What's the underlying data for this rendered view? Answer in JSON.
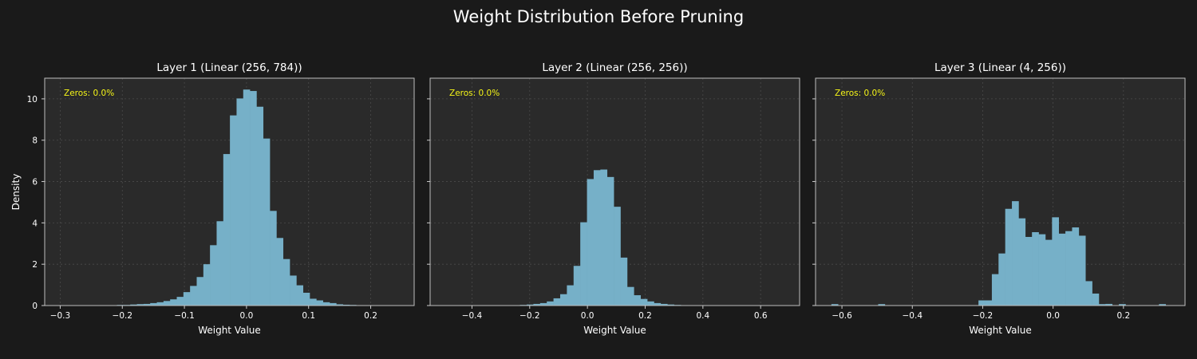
{
  "figure": {
    "suptitle": "Weight Distribution Before Pruning",
    "background": "#1a1a1a",
    "panel_background": "#2a2a2a",
    "bar_color": "#76b0c8",
    "annotation_color": "#f5f518",
    "text_color": "#ffffff"
  },
  "chart_data": [
    {
      "type": "bar",
      "title": "Layer 1 (Linear (256, 784))",
      "xlabel": "Weight Value",
      "ylabel": "Density",
      "annotation": "Zeros: 0.0%",
      "xlim": [
        -0.325,
        0.27
      ],
      "ylim": [
        0,
        11
      ],
      "grid": true,
      "xticks": [
        -0.3,
        -0.2,
        -0.1,
        0.0,
        0.1,
        0.2
      ],
      "xtick_labels": [
        "−0.3",
        "−0.2",
        "−0.1",
        "0.0",
        "0.1",
        "0.2"
      ],
      "yticks": [
        0,
        2,
        4,
        6,
        8,
        10
      ],
      "ytick_labels": [
        "0",
        "2",
        "4",
        "6",
        "8",
        "10"
      ],
      "bin_start": -0.23,
      "bin_width": 0.0107,
      "values": [
        0.01,
        0.02,
        0.03,
        0.03,
        0.05,
        0.07,
        0.08,
        0.12,
        0.16,
        0.22,
        0.3,
        0.42,
        0.65,
        0.95,
        1.38,
        2.0,
        2.92,
        4.08,
        7.33,
        9.2,
        10.02,
        10.45,
        10.38,
        9.62,
        8.08,
        4.58,
        3.27,
        2.25,
        1.45,
        0.98,
        0.62,
        0.33,
        0.25,
        0.16,
        0.12,
        0.06,
        0.04,
        0.03,
        0.02,
        0.01
      ]
    },
    {
      "type": "bar",
      "title": "Layer 2 (Linear (256, 256))",
      "xlabel": "Weight Value",
      "ylabel": "",
      "annotation": "Zeros: 0.0%",
      "xlim": [
        -0.545,
        0.735
      ],
      "ylim": [
        0,
        11
      ],
      "grid": true,
      "xticks": [
        -0.4,
        -0.2,
        0.0,
        0.2,
        0.4,
        0.6
      ],
      "xtick_labels": [
        "−0.4",
        "−0.2",
        "0.0",
        "0.2",
        "0.4",
        "0.6"
      ],
      "yticks": [
        0,
        2,
        4,
        6,
        8,
        10
      ],
      "ytick_labels": [
        "0",
        "2",
        "4",
        "6",
        "8",
        "10"
      ],
      "bin_start": -0.28,
      "bin_width": 0.0232,
      "values": [
        0.01,
        0.02,
        0.03,
        0.05,
        0.08,
        0.12,
        0.2,
        0.35,
        0.55,
        0.98,
        1.92,
        4.03,
        6.12,
        6.55,
        6.58,
        6.22,
        4.78,
        2.32,
        0.9,
        0.5,
        0.32,
        0.2,
        0.12,
        0.08,
        0.05,
        0.03,
        0.02
      ]
    },
    {
      "type": "bar",
      "title": "Layer 3 (Linear (4, 256))",
      "xlabel": "Weight Value",
      "ylabel": "",
      "annotation": "Zeros: 0.0%",
      "xlim": [
        -0.675,
        0.375
      ],
      "ylim": [
        0,
        11
      ],
      "grid": true,
      "xticks": [
        -0.6,
        -0.4,
        -0.2,
        0.0,
        0.2
      ],
      "xtick_labels": [
        "−0.6",
        "−0.4",
        "−0.2",
        "0.0",
        "0.2"
      ],
      "yticks": [
        0,
        2,
        4,
        6,
        8,
        10
      ],
      "ytick_labels": [
        "0",
        "2",
        "4",
        "6",
        "8",
        "10"
      ],
      "bin_start": -0.63,
      "bin_width": 0.019,
      "values": [
        0.07,
        0,
        0,
        0,
        0,
        0,
        0,
        0.07,
        0,
        0,
        0,
        0,
        0,
        0,
        0,
        0,
        0,
        0,
        0,
        0,
        0,
        0,
        0.25,
        0.25,
        1.52,
        2.52,
        4.68,
        5.05,
        4.22,
        3.32,
        3.55,
        3.45,
        3.18,
        4.27,
        3.48,
        3.6,
        3.78,
        3.38,
        1.18,
        0.58,
        0.07,
        0.08,
        0,
        0.07,
        0,
        0,
        0,
        0,
        0,
        0.07
      ]
    }
  ]
}
